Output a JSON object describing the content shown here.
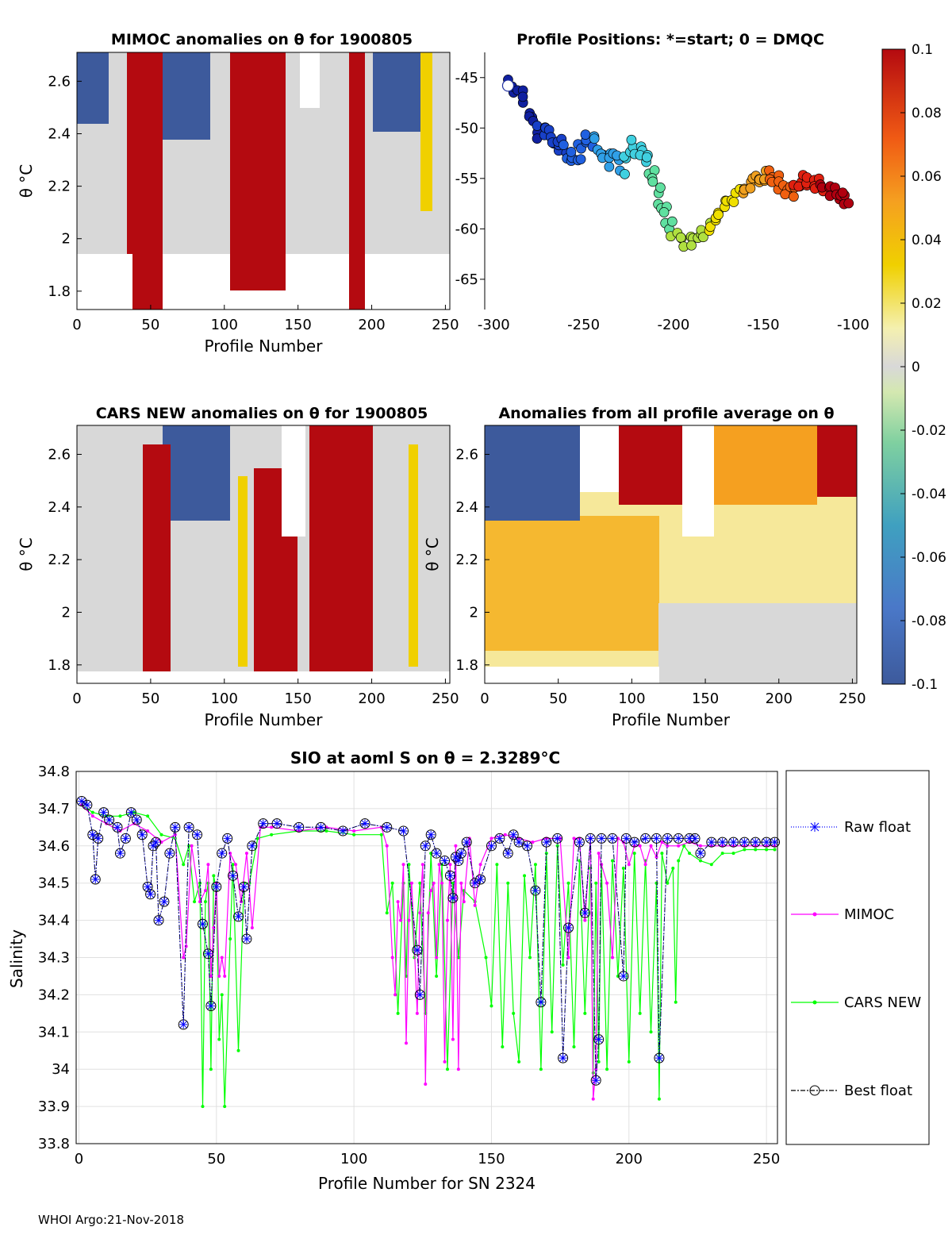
{
  "footer": "WHOI Argo:21-Nov-2018",
  "chart_data": [
    {
      "id": "mimoc",
      "type": "heatmap",
      "title": "MIMOC anomalies on θ  for 1900805",
      "xlabel": "Profile Number",
      "ylabel": "θ °C",
      "xlim": [
        0,
        253
      ],
      "ylim": [
        1.73,
        2.71
      ],
      "xticks": [
        0,
        50,
        100,
        150,
        200,
        250
      ],
      "yticks": [
        1.8,
        2,
        2.2,
        2.4,
        2.6
      ],
      "ytick_labels": [
        "1.8",
        "2",
        "2.2",
        "2.4",
        "2.6"
      ]
    },
    {
      "id": "positions",
      "type": "scatter",
      "title": "Profile Positions: *=start; 0 = DMQC",
      "xlim": [
        -305,
        -98
      ],
      "ylim": [
        -68,
        -42.5
      ],
      "xticks": [
        -300,
        -250,
        -200,
        -150,
        -100
      ],
      "yticks": [
        -65,
        -60,
        -55,
        -50,
        -45
      ],
      "track": [
        [
          -292,
          -45.8
        ],
        [
          -285,
          -46.5
        ],
        [
          -280,
          -48.5
        ],
        [
          -276,
          -50.5
        ],
        [
          -270,
          -50
        ],
        [
          -266,
          -52
        ],
        [
          -262,
          -51.5
        ],
        [
          -258,
          -53
        ],
        [
          -253,
          -52.5
        ],
        [
          -249,
          -51
        ],
        [
          -243,
          -51.5
        ],
        [
          -238,
          -53.5
        ],
        [
          -233,
          -52.5
        ],
        [
          -228,
          -54
        ],
        [
          -224,
          -51.5
        ],
        [
          -218,
          -52.5
        ],
        [
          -214,
          -53.5
        ],
        [
          -210,
          -55.5
        ],
        [
          -206,
          -57.5
        ],
        [
          -203,
          -59.5
        ],
        [
          -197,
          -61
        ],
        [
          -190,
          -61.5
        ],
        [
          -184,
          -60.5
        ],
        [
          -178,
          -59.5
        ],
        [
          -174,
          -58
        ],
        [
          -168,
          -57
        ],
        [
          -162,
          -56.5
        ],
        [
          -157,
          -55.5
        ],
        [
          -152,
          -55
        ],
        [
          -148,
          -54.5
        ],
        [
          -144,
          -55
        ],
        [
          -139,
          -56
        ],
        [
          -134,
          -56.5
        ],
        [
          -130,
          -55.5
        ],
        [
          -126,
          -55
        ],
        [
          -120,
          -55.5
        ],
        [
          -116,
          -56
        ],
        [
          -110,
          -56.5
        ],
        [
          -106,
          -57
        ],
        [
          -103,
          -57
        ]
      ]
    },
    {
      "id": "colorbar",
      "type": "colorbar",
      "clim": [
        -0.1,
        0.1
      ],
      "tick_values": [
        -0.1,
        -0.08,
        -0.06,
        -0.04,
        -0.02,
        0,
        0.02,
        0.04,
        0.06,
        0.08,
        0.1
      ],
      "tick_labels": [
        "-0.1",
        "-0.08",
        "-0.06",
        "-0.04",
        "-0.02",
        "0",
        "0.02",
        "0.04",
        "0.06",
        "0.08",
        "0.1"
      ]
    },
    {
      "id": "cars",
      "type": "heatmap",
      "title": "CARS NEW anomalies on θ for 1900805",
      "xlabel": "Profile Number",
      "ylabel": "θ °C",
      "xlim": [
        0,
        253
      ],
      "ylim": [
        1.73,
        2.71
      ],
      "xticks": [
        0,
        50,
        100,
        150,
        200,
        250
      ],
      "yticks": [
        1.8,
        2,
        2.2,
        2.4,
        2.6
      ],
      "ytick_labels": [
        "1.8",
        "2",
        "2.2",
        "2.4",
        "2.6"
      ]
    },
    {
      "id": "avg",
      "type": "heatmap",
      "title": "Anomalies from all profile average on θ",
      "xlabel": "Profile Number",
      "ylabel": "θ °C",
      "xlim": [
        0,
        253
      ],
      "ylim": [
        1.73,
        2.71
      ],
      "xticks": [
        0,
        50,
        100,
        150,
        200,
        250
      ],
      "yticks": [
        1.8,
        2,
        2.2,
        2.4,
        2.6
      ],
      "ytick_labels": [
        "1.8",
        "2",
        "2.2",
        "2.4",
        "2.6"
      ]
    },
    {
      "id": "salinity",
      "type": "line",
      "title": "SIO at aoml S on θ = 2.3289°C",
      "xlabel": "Profile Number for SN 2324",
      "ylabel": "Salinity",
      "xlim": [
        -1,
        254
      ],
      "ylim": [
        33.8,
        34.8
      ],
      "xticks": [
        0,
        50,
        100,
        150,
        200,
        250
      ],
      "yticks": [
        33.8,
        33.9,
        34,
        34.1,
        34.2,
        34.3,
        34.4,
        34.5,
        34.6,
        34.7,
        34.8
      ],
      "ytick_labels": [
        "33.8",
        "33.9",
        "34",
        "34.1",
        "34.2",
        "34.3",
        "34.4",
        "34.5",
        "34.6",
        "34.7",
        "34.8"
      ],
      "grid": true,
      "legend": {
        "position": "right",
        "entries": [
          "Raw float",
          "MIMOC",
          "CARS NEW",
          "Best float"
        ]
      },
      "series": [
        {
          "name": "Best float",
          "color": "#000000",
          "x": [
            1,
            3,
            5,
            6,
            7,
            9,
            11,
            14,
            15,
            17,
            19,
            21,
            23,
            25,
            26,
            27,
            28,
            29,
            31,
            33,
            35,
            38,
            40,
            43,
            45,
            47,
            48,
            50,
            52,
            54,
            56,
            58,
            60,
            61,
            63,
            67,
            72,
            80,
            88,
            96,
            104,
            112,
            118,
            123,
            124,
            126,
            128,
            130,
            133,
            135,
            136,
            137,
            138,
            139,
            141,
            144,
            146,
            150,
            153,
            156,
            158,
            160,
            163,
            166,
            168,
            170,
            174,
            176,
            178,
            182,
            184,
            186,
            188,
            189,
            190,
            194,
            198,
            199,
            202,
            206,
            210,
            211,
            214,
            218,
            222,
            224,
            226,
            230,
            234,
            238,
            242,
            246,
            250,
            253
          ],
          "y": [
            34.72,
            34.71,
            34.63,
            34.51,
            34.62,
            34.69,
            34.67,
            34.65,
            34.58,
            34.62,
            34.69,
            34.67,
            34.63,
            34.49,
            34.47,
            34.6,
            34.61,
            34.4,
            34.45,
            34.58,
            34.65,
            34.12,
            34.65,
            34.63,
            34.39,
            34.31,
            34.17,
            34.49,
            34.58,
            34.62,
            34.52,
            34.41,
            34.49,
            34.35,
            34.6,
            34.66,
            34.66,
            34.65,
            34.65,
            34.64,
            34.66,
            34.65,
            34.64,
            34.32,
            34.2,
            34.6,
            34.63,
            34.58,
            34.56,
            34.52,
            34.46,
            34.57,
            34.56,
            34.58,
            34.61,
            34.5,
            34.51,
            34.6,
            34.62,
            34.58,
            34.63,
            34.61,
            34.6,
            34.48,
            34.18,
            34.61,
            34.62,
            34.03,
            34.38,
            34.61,
            34.42,
            34.62,
            33.97,
            34.08,
            34.62,
            34.62,
            34.25,
            34.62,
            34.61,
            34.62,
            34.62,
            34.03,
            34.62,
            34.62,
            34.62,
            34.62,
            34.58,
            34.61,
            34.61,
            34.61,
            34.61,
            34.61,
            34.61,
            34.61
          ]
        },
        {
          "name": "MIMOC",
          "color": "#ff00ff",
          "x": [
            1,
            5,
            10,
            15,
            20,
            25,
            30,
            35,
            38,
            39,
            41,
            44,
            46,
            47,
            48,
            49,
            50,
            51,
            52,
            53,
            55,
            57,
            59,
            61,
            63,
            66,
            70,
            80,
            90,
            100,
            110,
            112,
            114,
            115,
            116,
            117,
            118,
            119,
            120,
            121,
            123,
            124,
            125,
            126,
            127,
            128,
            129,
            130,
            131,
            132,
            133,
            134,
            135,
            136,
            137,
            138,
            139,
            140,
            142,
            144,
            146,
            150,
            155,
            160,
            165,
            170,
            175,
            178,
            180,
            182,
            184,
            186,
            187,
            188,
            189,
            190,
            192,
            194,
            196,
            198,
            200,
            202,
            204,
            206,
            208,
            210,
            212,
            214,
            218,
            222,
            226,
            230,
            234,
            238,
            242,
            246,
            250,
            253
          ],
          "y": [
            34.71,
            34.68,
            34.66,
            34.64,
            34.66,
            34.64,
            34.61,
            34.63,
            34.3,
            34.33,
            34.6,
            34.45,
            34.48,
            34.55,
            34.25,
            34.38,
            34.5,
            34.25,
            34.3,
            34.25,
            34.58,
            34.55,
            34.45,
            34.58,
            34.38,
            34.65,
            34.65,
            34.64,
            34.65,
            34.64,
            34.65,
            34.6,
            34.3,
            34.2,
            34.45,
            34.4,
            34.55,
            34.07,
            34.4,
            34.5,
            34.15,
            34.42,
            34.55,
            33.96,
            34.42,
            34.48,
            34.5,
            34.3,
            34.55,
            34.5,
            34.02,
            34.4,
            34.55,
            34.08,
            34.6,
            34.0,
            34.5,
            34.45,
            34.62,
            34.44,
            34.55,
            34.62,
            34.63,
            34.62,
            34.61,
            34.62,
            34.62,
            34.3,
            34.62,
            34.62,
            34.4,
            34.62,
            33.92,
            34.0,
            34.58,
            34.55,
            34.5,
            34.3,
            34.62,
            34.61,
            34.55,
            34.6,
            34.6,
            34.55,
            34.6,
            34.57,
            34.61,
            34.6,
            34.6,
            34.61,
            34.6,
            34.6,
            34.6,
            34.6,
            34.6,
            34.6,
            34.6,
            34.6
          ]
        },
        {
          "name": "CARS NEW",
          "color": "#00ff00",
          "x": [
            1,
            5,
            10,
            15,
            20,
            25,
            30,
            35,
            38,
            40,
            42,
            44,
            45,
            46,
            47,
            48,
            49,
            50,
            51,
            52,
            53,
            55,
            56,
            58,
            60,
            62,
            65,
            70,
            80,
            90,
            100,
            110,
            112,
            114,
            116,
            118,
            119,
            120,
            122,
            124,
            126,
            128,
            130,
            132,
            134,
            136,
            138,
            140,
            144,
            148,
            150,
            152,
            154,
            156,
            158,
            160,
            162,
            164,
            166,
            168,
            170,
            172,
            174,
            176,
            178,
            180,
            182,
            184,
            186,
            187,
            188,
            189,
            190,
            192,
            194,
            196,
            198,
            200,
            202,
            204,
            206,
            208,
            210,
            211,
            212,
            214,
            216,
            217,
            218,
            220,
            222,
            226,
            230,
            234,
            238,
            242,
            246,
            250,
            253
          ],
          "y": [
            34.71,
            34.69,
            34.68,
            34.68,
            34.69,
            34.68,
            34.63,
            34.62,
            34.55,
            34.6,
            34.45,
            34.5,
            33.9,
            34.45,
            34.5,
            34.0,
            34.52,
            34.48,
            34.08,
            34.2,
            33.9,
            34.35,
            34.55,
            34.05,
            34.5,
            34.5,
            34.62,
            34.63,
            34.64,
            34.64,
            34.63,
            34.63,
            34.42,
            34.5,
            34.15,
            34.5,
            34.25,
            34.55,
            34.3,
            34.5,
            34.15,
            34.58,
            34.25,
            34.55,
            34.0,
            34.5,
            34.3,
            34.48,
            34.45,
            34.3,
            34.17,
            34.55,
            34.06,
            34.5,
            34.15,
            34.02,
            34.52,
            34.3,
            34.55,
            34.0,
            34.58,
            34.1,
            34.6,
            34.28,
            34.5,
            34.06,
            34.56,
            34.15,
            34.54,
            33.99,
            34.5,
            34.02,
            34.55,
            34.0,
            34.56,
            34.25,
            34.54,
            34.02,
            34.58,
            34.15,
            34.56,
            34.1,
            34.5,
            33.92,
            34.58,
            34.5,
            34.54,
            34.18,
            34.56,
            34.6,
            34.58,
            34.56,
            34.55,
            34.58,
            34.58,
            34.59,
            34.59,
            34.59,
            34.59
          ]
        },
        {
          "name": "Raw float",
          "color": "#0000ff",
          "x": [
            1,
            3,
            5,
            6,
            7,
            9,
            11,
            14,
            15,
            17,
            19,
            21,
            23,
            25,
            26,
            27,
            28,
            29,
            31,
            33,
            35,
            38,
            40,
            43,
            45,
            47,
            48,
            50,
            52,
            54,
            56,
            58,
            60,
            61,
            63,
            67,
            72,
            80,
            88,
            96,
            104,
            112,
            118,
            123,
            124,
            126,
            128,
            130,
            133,
            135,
            136,
            137,
            138,
            139,
            141,
            144,
            146,
            150,
            153,
            156,
            158,
            160,
            163,
            166,
            168,
            170,
            174,
            176,
            178,
            182,
            184,
            186,
            188,
            189,
            190,
            194,
            198,
            199,
            202,
            206,
            210,
            211,
            214,
            218,
            222,
            224,
            226,
            230,
            234,
            238,
            242,
            246,
            250,
            253
          ],
          "y": [
            34.72,
            34.71,
            34.63,
            34.51,
            34.62,
            34.69,
            34.67,
            34.65,
            34.58,
            34.62,
            34.69,
            34.67,
            34.63,
            34.49,
            34.47,
            34.6,
            34.61,
            34.4,
            34.45,
            34.58,
            34.65,
            34.12,
            34.65,
            34.63,
            34.39,
            34.31,
            34.17,
            34.49,
            34.58,
            34.62,
            34.52,
            34.41,
            34.49,
            34.35,
            34.6,
            34.66,
            34.66,
            34.65,
            34.65,
            34.64,
            34.66,
            34.65,
            34.64,
            34.32,
            34.2,
            34.6,
            34.63,
            34.58,
            34.56,
            34.52,
            34.46,
            34.57,
            34.56,
            34.58,
            34.61,
            34.5,
            34.51,
            34.6,
            34.62,
            34.58,
            34.63,
            34.61,
            34.6,
            34.48,
            34.18,
            34.61,
            34.62,
            34.03,
            34.38,
            34.61,
            34.42,
            34.62,
            33.97,
            34.08,
            34.62,
            34.62,
            34.25,
            34.62,
            34.61,
            34.62,
            34.62,
            34.03,
            34.62,
            34.62,
            34.62,
            34.62,
            34.58,
            34.61,
            34.61,
            34.61,
            34.61,
            34.61,
            34.61,
            34.61
          ]
        }
      ]
    }
  ]
}
